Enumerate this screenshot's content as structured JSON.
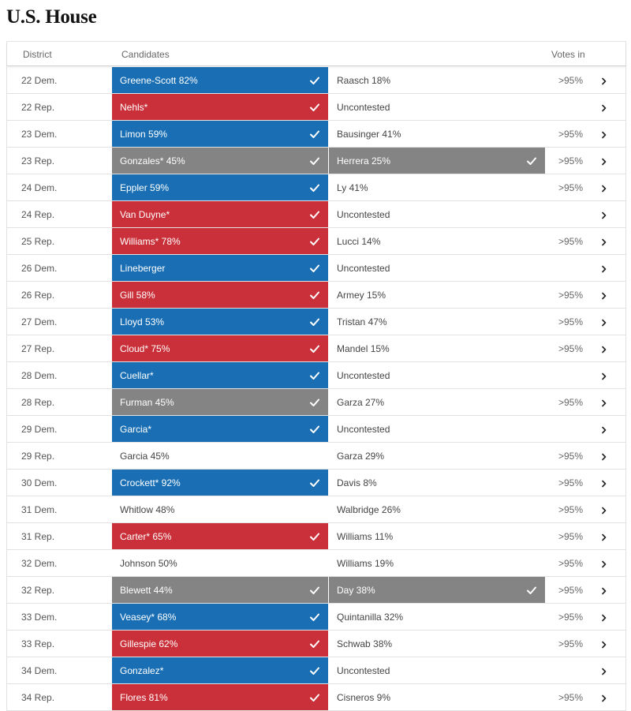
{
  "title": "U.S. House",
  "colors": {
    "dem": "#1a6fb4",
    "rep": "#c9303a",
    "leading": "#848484"
  },
  "headers": {
    "district": "District",
    "candidates": "Candidates",
    "votes_in": "Votes in"
  },
  "rows": [
    {
      "district": "22 Dem.",
      "c1": "Greene-Scott 82%",
      "c1_style": "dem",
      "c1_check": true,
      "c2": "Raasch 18%",
      "c2_style": "",
      "c2_check": false,
      "votes": ">95%"
    },
    {
      "district": "22 Rep.",
      "c1": "Nehls*",
      "c1_style": "rep",
      "c1_check": true,
      "c2": "Uncontested",
      "c2_style": "",
      "c2_check": false,
      "votes": ""
    },
    {
      "district": "23 Dem.",
      "c1": "Limon 59%",
      "c1_style": "dem",
      "c1_check": true,
      "c2": "Bausinger 41%",
      "c2_style": "",
      "c2_check": false,
      "votes": ">95%"
    },
    {
      "district": "23 Rep.",
      "c1": "Gonzales* 45%",
      "c1_style": "gray",
      "c1_check": true,
      "c2": "Herrera 25%",
      "c2_style": "gray",
      "c2_check": true,
      "votes": ">95%"
    },
    {
      "district": "24 Dem.",
      "c1": "Eppler 59%",
      "c1_style": "dem",
      "c1_check": true,
      "c2": "Ly 41%",
      "c2_style": "",
      "c2_check": false,
      "votes": ">95%"
    },
    {
      "district": "24 Rep.",
      "c1": "Van Duyne*",
      "c1_style": "rep",
      "c1_check": true,
      "c2": "Uncontested",
      "c2_style": "",
      "c2_check": false,
      "votes": ""
    },
    {
      "district": "25 Rep.",
      "c1": "Williams* 78%",
      "c1_style": "rep",
      "c1_check": true,
      "c2": "Lucci 14%",
      "c2_style": "",
      "c2_check": false,
      "votes": ">95%"
    },
    {
      "district": "26 Dem.",
      "c1": "Lineberger",
      "c1_style": "dem",
      "c1_check": true,
      "c2": "Uncontested",
      "c2_style": "",
      "c2_check": false,
      "votes": ""
    },
    {
      "district": "26 Rep.",
      "c1": "Gill 58%",
      "c1_style": "rep",
      "c1_check": true,
      "c2": "Armey 15%",
      "c2_style": "",
      "c2_check": false,
      "votes": ">95%"
    },
    {
      "district": "27 Dem.",
      "c1": "Lloyd 53%",
      "c1_style": "dem",
      "c1_check": true,
      "c2": "Tristan 47%",
      "c2_style": "",
      "c2_check": false,
      "votes": ">95%"
    },
    {
      "district": "27 Rep.",
      "c1": "Cloud* 75%",
      "c1_style": "rep",
      "c1_check": true,
      "c2": "Mandel 15%",
      "c2_style": "",
      "c2_check": false,
      "votes": ">95%"
    },
    {
      "district": "28 Dem.",
      "c1": "Cuellar*",
      "c1_style": "dem",
      "c1_check": true,
      "c2": "Uncontested",
      "c2_style": "",
      "c2_check": false,
      "votes": ""
    },
    {
      "district": "28 Rep.",
      "c1": "Furman 45%",
      "c1_style": "gray",
      "c1_check": true,
      "c2": "Garza 27%",
      "c2_style": "",
      "c2_check": false,
      "votes": ">95%"
    },
    {
      "district": "29 Dem.",
      "c1": "Garcia*",
      "c1_style": "dem",
      "c1_check": true,
      "c2": "Uncontested",
      "c2_style": "",
      "c2_check": false,
      "votes": ""
    },
    {
      "district": "29 Rep.",
      "c1": "Garcia 45%",
      "c1_style": "",
      "c1_check": false,
      "c2": "Garza 29%",
      "c2_style": "",
      "c2_check": false,
      "votes": ">95%"
    },
    {
      "district": "30 Dem.",
      "c1": "Crockett* 92%",
      "c1_style": "dem",
      "c1_check": true,
      "c2": "Davis 8%",
      "c2_style": "",
      "c2_check": false,
      "votes": ">95%"
    },
    {
      "district": "31 Dem.",
      "c1": "Whitlow 48%",
      "c1_style": "",
      "c1_check": false,
      "c2": "Walbridge 26%",
      "c2_style": "",
      "c2_check": false,
      "votes": ">95%"
    },
    {
      "district": "31 Rep.",
      "c1": "Carter* 65%",
      "c1_style": "rep",
      "c1_check": true,
      "c2": "Williams 11%",
      "c2_style": "",
      "c2_check": false,
      "votes": ">95%"
    },
    {
      "district": "32 Dem.",
      "c1": "Johnson 50%",
      "c1_style": "",
      "c1_check": false,
      "c2": "Williams 19%",
      "c2_style": "",
      "c2_check": false,
      "votes": ">95%"
    },
    {
      "district": "32 Rep.",
      "c1": "Blewett 44%",
      "c1_style": "gray",
      "c1_check": true,
      "c2": "Day 38%",
      "c2_style": "gray",
      "c2_check": true,
      "votes": ">95%"
    },
    {
      "district": "33 Dem.",
      "c1": "Veasey* 68%",
      "c1_style": "dem",
      "c1_check": true,
      "c2": "Quintanilla 32%",
      "c2_style": "",
      "c2_check": false,
      "votes": ">95%"
    },
    {
      "district": "33 Rep.",
      "c1": "Gillespie 62%",
      "c1_style": "rep",
      "c1_check": true,
      "c2": "Schwab 38%",
      "c2_style": "",
      "c2_check": false,
      "votes": ">95%"
    },
    {
      "district": "34 Dem.",
      "c1": "Gonzalez*",
      "c1_style": "dem",
      "c1_check": true,
      "c2": "Uncontested",
      "c2_style": "",
      "c2_check": false,
      "votes": ""
    },
    {
      "district": "34 Rep.",
      "c1": "Flores 81%",
      "c1_style": "rep",
      "c1_check": true,
      "c2": "Cisneros 9%",
      "c2_style": "",
      "c2_check": false,
      "votes": ">95%"
    }
  ]
}
